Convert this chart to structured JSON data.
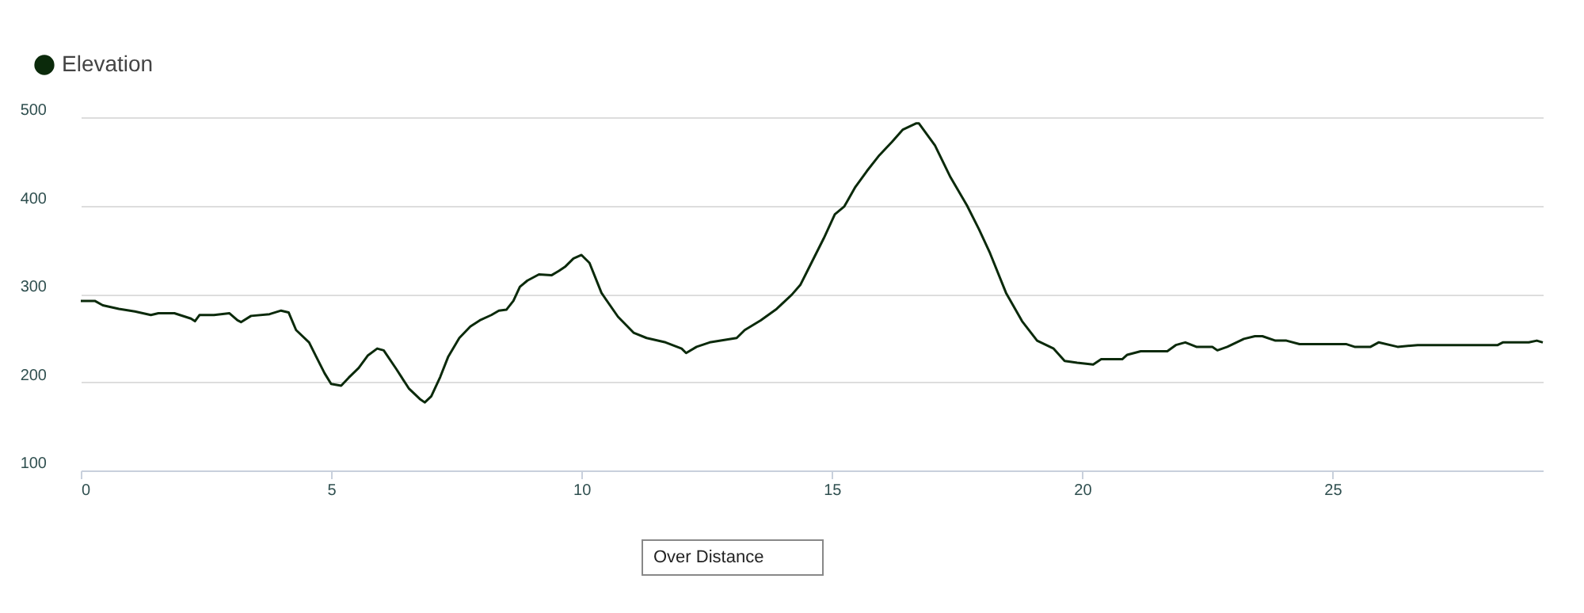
{
  "chart_data": {
    "type": "line",
    "x": [
      0,
      0.28,
      0.44,
      0.76,
      1.08,
      1.4,
      1.55,
      1.87,
      2.2,
      2.28,
      2.37,
      2.66,
      2.97,
      3.13,
      3.2,
      3.4,
      3.77,
      4.0,
      4.15,
      4.3,
      4.56,
      4.7,
      4.87,
      5.0,
      5.2,
      5.35,
      5.55,
      5.73,
      5.92,
      6.05,
      6.3,
      6.55,
      6.77,
      6.87,
      7.0,
      7.18,
      7.34,
      7.56,
      7.78,
      7.97,
      8.2,
      8.35,
      8.5,
      8.64,
      8.77,
      8.92,
      9.15,
      9.4,
      9.55,
      9.68,
      9.84,
      10.0,
      10.16,
      10.4,
      10.73,
      11.04,
      11.3,
      11.68,
      12.0,
      12.09,
      12.3,
      12.56,
      12.78,
      13.1,
      13.26,
      13.58,
      13.9,
      14.2,
      14.37,
      14.53,
      14.84,
      15.06,
      15.25,
      15.47,
      15.7,
      15.95,
      16.2,
      16.42,
      16.68,
      16.74,
      17.06,
      17.37,
      17.7,
      17.94,
      18.16,
      18.48,
      18.8,
      19.1,
      19.43,
      19.65,
      19.9,
      20.22,
      20.38,
      20.8,
      20.9,
      21.17,
      21.7,
      21.87,
      22.06,
      22.28,
      22.6,
      22.7,
      22.9,
      23.23,
      23.45,
      23.6,
      23.86,
      24.08,
      24.34,
      24.65,
      25.28,
      25.44,
      25.76,
      25.92,
      26.3,
      26.7,
      28.3,
      28.4,
      28.92,
      29.08,
      29.2
    ],
    "series": [
      {
        "name": "Elevation",
        "color": "#0b2a0b",
        "values": [
          292,
          292,
          287,
          283,
          280,
          276,
          278,
          278,
          272,
          269,
          276,
          276,
          278,
          270,
          268,
          275,
          277,
          281,
          279,
          259,
          245,
          229,
          210,
          198,
          196,
          205,
          216,
          230,
          238,
          236,
          215,
          193,
          181,
          177,
          184,
          206,
          229,
          250,
          263,
          270,
          276,
          281,
          282,
          292,
          308,
          315,
          322,
          321,
          326,
          331,
          340,
          344,
          335,
          301,
          274,
          256,
          250,
          245,
          238,
          233,
          240,
          245,
          247,
          250,
          259,
          270,
          283,
          299,
          310,
          328,
          363,
          390,
          399,
          421,
          439,
          457,
          472,
          486,
          493,
          493,
          468,
          432,
          400,
          373,
          346,
          301,
          269,
          247,
          238,
          224,
          222,
          220,
          226,
          226,
          231,
          235,
          235,
          242,
          245,
          240,
          240,
          236,
          240,
          249,
          252,
          252,
          247,
          247,
          243,
          243,
          243,
          240,
          240,
          245,
          240,
          242,
          242,
          245,
          245,
          247,
          245
        ]
      }
    ],
    "xlim": [
      0,
      29.2
    ],
    "xticks": [
      0,
      5,
      10,
      15,
      20,
      25
    ],
    "ylim": [
      100,
      500
    ],
    "yticks": [
      100,
      200,
      300,
      400,
      500
    ],
    "grid": "y",
    "legend": "top left",
    "marker": "none",
    "line_style": "solid",
    "annotations": [
      "Over Distance"
    ]
  }
}
